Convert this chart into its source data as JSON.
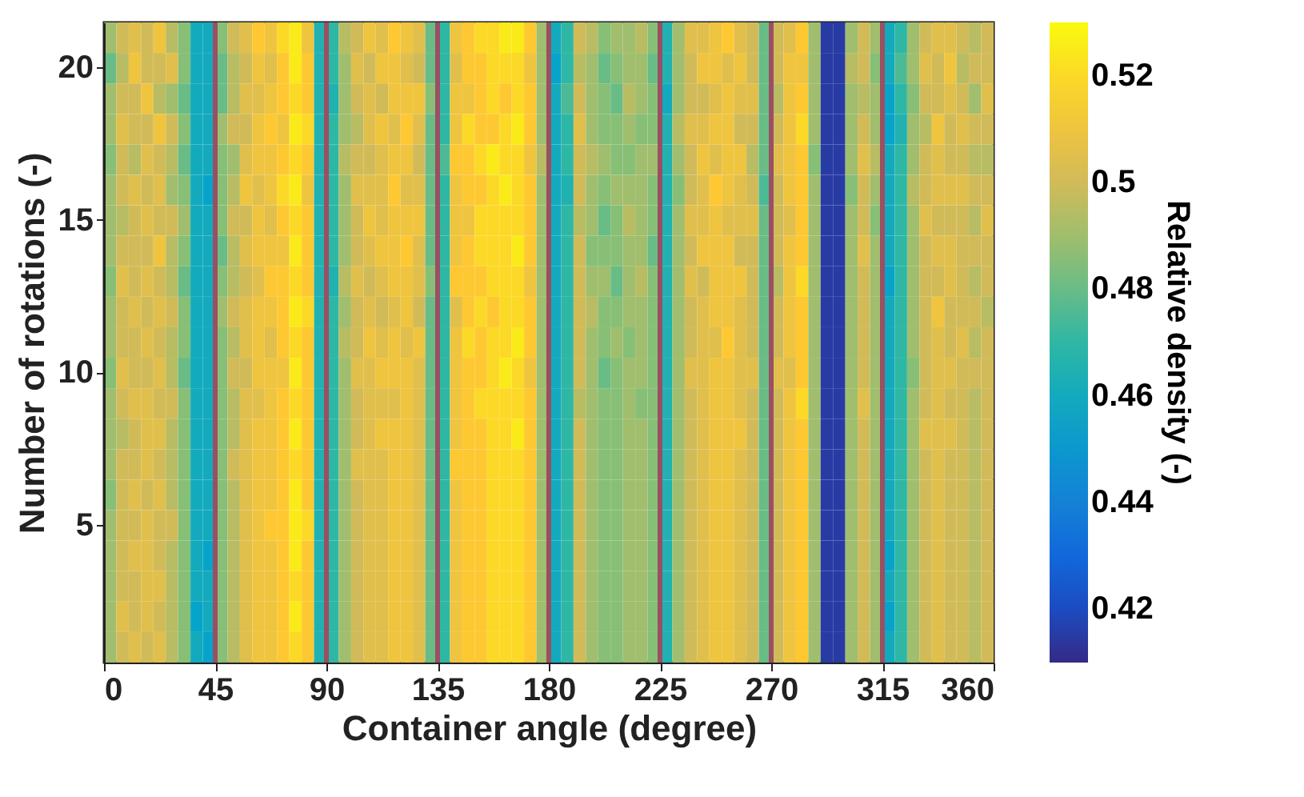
{
  "chart_data": {
    "type": "heatmap",
    "xlabel": "Container angle (degree)",
    "ylabel": "Number of rotations (-)",
    "clabel": "Relative density (-)",
    "x": [
      2.5,
      7.5,
      12.5,
      17.5,
      22.5,
      27.5,
      32.5,
      37.5,
      42.5,
      47.5,
      52.5,
      57.5,
      62.5,
      67.5,
      72.5,
      77.5,
      82.5,
      87.5,
      92.5,
      97.5,
      102.5,
      107.5,
      112.5,
      117.5,
      122.5,
      127.5,
      132.5,
      137.5,
      142.5,
      147.5,
      152.5,
      157.5,
      162.5,
      167.5,
      172.5,
      177.5,
      182.5,
      187.5,
      192.5,
      197.5,
      202.5,
      207.5,
      212.5,
      217.5,
      222.5,
      227.5,
      232.5,
      237.5,
      242.5,
      247.5,
      252.5,
      257.5,
      262.5,
      267.5,
      272.5,
      277.5,
      282.5,
      287.5,
      292.5,
      297.5,
      302.5,
      307.5,
      312.5,
      317.5,
      322.5,
      327.5,
      332.5,
      337.5,
      342.5,
      347.5,
      352.5,
      357.5
    ],
    "y_categories": [
      null,
      "20",
      null,
      null,
      null,
      null,
      "15",
      null,
      null,
      null,
      null,
      "10",
      null,
      null,
      null,
      null,
      "5",
      null,
      null,
      null,
      null
    ],
    "xlim": [
      0,
      360
    ],
    "xticks": [
      0,
      45,
      90,
      135,
      180,
      225,
      270,
      315,
      360
    ],
    "clim": [
      0.41,
      0.53
    ],
    "cticks": [
      0.42,
      0.44,
      0.46,
      0.48,
      0.5,
      0.52
    ],
    "ref_lines": [
      {
        "axis": "x",
        "value": 45,
        "color": "#9a4f63"
      },
      {
        "axis": "x",
        "value": 90,
        "color": "#9a4f63"
      },
      {
        "axis": "x",
        "value": 135,
        "color": "#9a4f63"
      },
      {
        "axis": "x",
        "value": 180,
        "color": "#9a4f63"
      },
      {
        "axis": "x",
        "value": 225,
        "color": "#9a4f63"
      },
      {
        "axis": "x",
        "value": 270,
        "color": "#9a4f63"
      },
      {
        "axis": "x",
        "value": 315,
        "color": "#9a4f63"
      }
    ],
    "cells": [
      [
        0.49,
        0.5,
        0.505,
        0.5,
        0.51,
        0.495,
        0.485,
        0.46,
        0.46,
        0.485,
        0.5,
        0.505,
        0.515,
        0.51,
        0.52,
        0.525,
        0.51,
        0.465,
        0.47,
        0.495,
        0.5,
        0.51,
        0.505,
        0.515,
        0.51,
        0.505,
        0.48,
        0.47,
        0.51,
        0.515,
        0.52,
        0.52,
        0.525,
        0.525,
        0.515,
        0.49,
        0.46,
        0.47,
        0.5,
        0.495,
        0.485,
        0.49,
        0.49,
        0.495,
        0.485,
        0.465,
        0.49,
        0.505,
        0.505,
        0.51,
        0.515,
        0.505,
        0.5,
        0.48,
        0.5,
        0.505,
        0.515,
        0.49,
        0.415,
        0.415,
        0.49,
        0.5,
        0.49,
        0.46,
        0.47,
        0.49,
        0.5,
        0.505,
        0.505,
        0.5,
        0.495,
        0.5
      ],
      [
        0.48,
        0.495,
        0.51,
        0.5,
        0.5,
        0.505,
        0.485,
        0.46,
        0.46,
        0.48,
        0.495,
        0.5,
        0.51,
        0.505,
        0.515,
        0.525,
        0.515,
        0.465,
        0.47,
        0.49,
        0.505,
        0.5,
        0.51,
        0.51,
        0.505,
        0.5,
        0.48,
        0.47,
        0.505,
        0.515,
        0.515,
        0.52,
        0.52,
        0.52,
        0.51,
        0.49,
        0.455,
        0.47,
        0.495,
        0.49,
        0.48,
        0.485,
        0.49,
        0.49,
        0.48,
        0.465,
        0.49,
        0.5,
        0.51,
        0.51,
        0.505,
        0.51,
        0.5,
        0.48,
        0.5,
        0.51,
        0.51,
        0.49,
        0.415,
        0.415,
        0.495,
        0.5,
        0.485,
        0.46,
        0.475,
        0.49,
        0.505,
        0.5,
        0.51,
        0.495,
        0.5,
        0.5
      ],
      [
        0.49,
        0.5,
        0.5,
        0.51,
        0.495,
        0.49,
        0.48,
        0.46,
        0.46,
        0.48,
        0.495,
        0.505,
        0.505,
        0.51,
        0.515,
        0.52,
        0.515,
        0.465,
        0.465,
        0.49,
        0.5,
        0.505,
        0.5,
        0.51,
        0.51,
        0.51,
        0.485,
        0.47,
        0.51,
        0.51,
        0.515,
        0.52,
        0.515,
        0.52,
        0.515,
        0.49,
        0.46,
        0.475,
        0.5,
        0.49,
        0.485,
        0.48,
        0.495,
        0.49,
        0.485,
        0.46,
        0.49,
        0.5,
        0.5,
        0.505,
        0.51,
        0.505,
        0.505,
        0.48,
        0.495,
        0.51,
        0.515,
        0.49,
        0.415,
        0.415,
        0.49,
        0.495,
        0.49,
        0.455,
        0.47,
        0.485,
        0.5,
        0.5,
        0.505,
        0.5,
        0.49,
        0.505
      ],
      [
        0.49,
        0.505,
        0.5,
        0.5,
        0.51,
        0.5,
        0.485,
        0.46,
        0.46,
        0.49,
        0.5,
        0.5,
        0.51,
        0.515,
        0.51,
        0.525,
        0.52,
        0.465,
        0.47,
        0.49,
        0.495,
        0.505,
        0.51,
        0.505,
        0.515,
        0.505,
        0.48,
        0.47,
        0.51,
        0.52,
        0.515,
        0.515,
        0.52,
        0.525,
        0.515,
        0.49,
        0.46,
        0.47,
        0.505,
        0.49,
        0.485,
        0.485,
        0.49,
        0.485,
        0.485,
        0.465,
        0.495,
        0.505,
        0.505,
        0.51,
        0.51,
        0.5,
        0.5,
        0.48,
        0.5,
        0.51,
        0.52,
        0.49,
        0.415,
        0.415,
        0.49,
        0.5,
        0.49,
        0.455,
        0.465,
        0.49,
        0.495,
        0.51,
        0.5,
        0.505,
        0.5,
        0.5
      ],
      [
        0.485,
        0.5,
        0.495,
        0.505,
        0.5,
        0.495,
        0.48,
        0.46,
        0.46,
        0.485,
        0.49,
        0.505,
        0.51,
        0.51,
        0.515,
        0.52,
        0.515,
        0.465,
        0.47,
        0.495,
        0.5,
        0.5,
        0.505,
        0.51,
        0.51,
        0.5,
        0.48,
        0.475,
        0.515,
        0.515,
        0.52,
        0.525,
        0.52,
        0.52,
        0.51,
        0.495,
        0.46,
        0.47,
        0.5,
        0.495,
        0.49,
        0.485,
        0.485,
        0.49,
        0.49,
        0.465,
        0.49,
        0.5,
        0.51,
        0.505,
        0.51,
        0.51,
        0.495,
        0.48,
        0.505,
        0.51,
        0.515,
        0.485,
        0.415,
        0.415,
        0.49,
        0.505,
        0.495,
        0.46,
        0.47,
        0.49,
        0.5,
        0.505,
        0.5,
        0.5,
        0.495,
        0.495
      ],
      [
        0.49,
        0.5,
        0.505,
        0.5,
        0.505,
        0.49,
        0.485,
        0.46,
        0.455,
        0.485,
        0.495,
        0.51,
        0.505,
        0.51,
        0.52,
        0.525,
        0.51,
        0.465,
        0.47,
        0.49,
        0.505,
        0.505,
        0.505,
        0.515,
        0.505,
        0.505,
        0.48,
        0.47,
        0.51,
        0.515,
        0.515,
        0.52,
        0.525,
        0.52,
        0.515,
        0.49,
        0.46,
        0.465,
        0.5,
        0.49,
        0.485,
        0.49,
        0.49,
        0.49,
        0.485,
        0.465,
        0.485,
        0.5,
        0.505,
        0.515,
        0.51,
        0.505,
        0.5,
        0.475,
        0.5,
        0.51,
        0.515,
        0.49,
        0.415,
        0.415,
        0.485,
        0.5,
        0.49,
        0.46,
        0.47,
        0.495,
        0.5,
        0.505,
        0.505,
        0.505,
        0.5,
        0.5
      ],
      [
        0.49,
        0.495,
        0.5,
        0.505,
        0.5,
        0.5,
        0.49,
        0.46,
        0.46,
        0.485,
        0.5,
        0.5,
        0.51,
        0.505,
        0.515,
        0.52,
        0.515,
        0.465,
        0.47,
        0.49,
        0.5,
        0.51,
        0.505,
        0.51,
        0.51,
        0.51,
        0.48,
        0.47,
        0.51,
        0.51,
        0.52,
        0.52,
        0.52,
        0.52,
        0.515,
        0.49,
        0.46,
        0.47,
        0.495,
        0.49,
        0.48,
        0.485,
        0.495,
        0.49,
        0.485,
        0.465,
        0.49,
        0.505,
        0.505,
        0.51,
        0.505,
        0.505,
        0.505,
        0.48,
        0.5,
        0.505,
        0.515,
        0.49,
        0.415,
        0.415,
        0.49,
        0.5,
        0.485,
        0.46,
        0.47,
        0.49,
        0.505,
        0.5,
        0.5,
        0.5,
        0.495,
        0.505
      ],
      [
        0.49,
        0.5,
        0.5,
        0.5,
        0.51,
        0.495,
        0.485,
        0.46,
        0.46,
        0.48,
        0.495,
        0.505,
        0.51,
        0.51,
        0.51,
        0.525,
        0.515,
        0.465,
        0.47,
        0.49,
        0.5,
        0.505,
        0.51,
        0.51,
        0.515,
        0.505,
        0.48,
        0.47,
        0.51,
        0.515,
        0.52,
        0.52,
        0.52,
        0.525,
        0.515,
        0.49,
        0.46,
        0.47,
        0.5,
        0.485,
        0.485,
        0.485,
        0.49,
        0.49,
        0.48,
        0.465,
        0.49,
        0.5,
        0.51,
        0.51,
        0.51,
        0.5,
        0.5,
        0.48,
        0.5,
        0.51,
        0.515,
        0.49,
        0.415,
        0.415,
        0.49,
        0.505,
        0.49,
        0.46,
        0.47,
        0.49,
        0.5,
        0.505,
        0.505,
        0.5,
        0.5,
        0.5
      ],
      [
        0.485,
        0.505,
        0.5,
        0.505,
        0.5,
        0.495,
        0.48,
        0.46,
        0.46,
        0.485,
        0.495,
        0.5,
        0.505,
        0.515,
        0.515,
        0.52,
        0.515,
        0.465,
        0.465,
        0.495,
        0.505,
        0.5,
        0.505,
        0.51,
        0.51,
        0.505,
        0.485,
        0.47,
        0.515,
        0.515,
        0.515,
        0.52,
        0.52,
        0.52,
        0.51,
        0.49,
        0.46,
        0.47,
        0.5,
        0.49,
        0.49,
        0.48,
        0.49,
        0.495,
        0.485,
        0.465,
        0.49,
        0.505,
        0.5,
        0.51,
        0.51,
        0.51,
        0.5,
        0.48,
        0.495,
        0.51,
        0.52,
        0.49,
        0.415,
        0.415,
        0.49,
        0.5,
        0.49,
        0.455,
        0.47,
        0.49,
        0.5,
        0.5,
        0.505,
        0.5,
        0.495,
        0.5
      ],
      [
        0.49,
        0.5,
        0.505,
        0.5,
        0.505,
        0.5,
        0.485,
        0.46,
        0.46,
        0.49,
        0.5,
        0.505,
        0.51,
        0.51,
        0.515,
        0.525,
        0.52,
        0.465,
        0.47,
        0.49,
        0.5,
        0.505,
        0.5,
        0.505,
        0.51,
        0.5,
        0.48,
        0.47,
        0.505,
        0.515,
        0.52,
        0.515,
        0.52,
        0.52,
        0.515,
        0.49,
        0.46,
        0.47,
        0.5,
        0.495,
        0.485,
        0.485,
        0.49,
        0.49,
        0.485,
        0.465,
        0.49,
        0.5,
        0.505,
        0.51,
        0.51,
        0.505,
        0.5,
        0.48,
        0.5,
        0.51,
        0.515,
        0.49,
        0.415,
        0.415,
        0.49,
        0.5,
        0.49,
        0.46,
        0.47,
        0.49,
        0.5,
        0.51,
        0.5,
        0.5,
        0.5,
        0.495
      ],
      [
        0.49,
        0.5,
        0.5,
        0.505,
        0.5,
        0.495,
        0.485,
        0.46,
        0.46,
        0.485,
        0.495,
        0.505,
        0.51,
        0.505,
        0.515,
        0.52,
        0.515,
        0.465,
        0.47,
        0.495,
        0.5,
        0.51,
        0.505,
        0.51,
        0.505,
        0.51,
        0.48,
        0.47,
        0.51,
        0.52,
        0.515,
        0.52,
        0.52,
        0.525,
        0.515,
        0.49,
        0.46,
        0.47,
        0.5,
        0.49,
        0.485,
        0.49,
        0.485,
        0.49,
        0.485,
        0.465,
        0.49,
        0.5,
        0.505,
        0.505,
        0.515,
        0.505,
        0.5,
        0.48,
        0.5,
        0.51,
        0.515,
        0.49,
        0.415,
        0.415,
        0.49,
        0.5,
        0.49,
        0.46,
        0.47,
        0.49,
        0.5,
        0.505,
        0.5,
        0.505,
        0.495,
        0.5
      ],
      [
        0.485,
        0.505,
        0.5,
        0.5,
        0.505,
        0.495,
        0.48,
        0.46,
        0.46,
        0.485,
        0.5,
        0.5,
        0.51,
        0.51,
        0.51,
        0.525,
        0.515,
        0.465,
        0.47,
        0.49,
        0.505,
        0.505,
        0.51,
        0.51,
        0.51,
        0.505,
        0.48,
        0.47,
        0.51,
        0.515,
        0.515,
        0.52,
        0.525,
        0.52,
        0.51,
        0.49,
        0.46,
        0.47,
        0.5,
        0.49,
        0.48,
        0.485,
        0.49,
        0.49,
        0.485,
        0.465,
        0.49,
        0.505,
        0.505,
        0.51,
        0.51,
        0.505,
        0.505,
        0.48,
        0.505,
        0.505,
        0.515,
        0.49,
        0.415,
        0.415,
        0.49,
        0.5,
        0.49,
        0.46,
        0.47,
        0.485,
        0.5,
        0.505,
        0.505,
        0.5,
        0.5,
        0.5
      ],
      [
        0.49,
        0.5,
        0.505,
        0.505,
        0.5,
        0.5,
        0.485,
        0.46,
        0.46,
        0.485,
        0.495,
        0.505,
        0.505,
        0.51,
        0.515,
        0.52,
        0.515,
        0.465,
        0.47,
        0.49,
        0.5,
        0.505,
        0.505,
        0.505,
        0.51,
        0.505,
        0.48,
        0.47,
        0.51,
        0.515,
        0.52,
        0.52,
        0.52,
        0.52,
        0.515,
        0.49,
        0.46,
        0.47,
        0.495,
        0.49,
        0.485,
        0.485,
        0.49,
        0.485,
        0.485,
        0.465,
        0.49,
        0.5,
        0.505,
        0.51,
        0.51,
        0.505,
        0.5,
        0.48,
        0.5,
        0.51,
        0.52,
        0.49,
        0.415,
        0.415,
        0.49,
        0.505,
        0.49,
        0.46,
        0.47,
        0.49,
        0.5,
        0.505,
        0.5,
        0.5,
        0.495,
        0.5
      ],
      [
        0.49,
        0.495,
        0.5,
        0.505,
        0.505,
        0.495,
        0.485,
        0.46,
        0.46,
        0.485,
        0.495,
        0.505,
        0.51,
        0.51,
        0.515,
        0.525,
        0.515,
        0.465,
        0.47,
        0.49,
        0.5,
        0.505,
        0.51,
        0.51,
        0.51,
        0.505,
        0.48,
        0.47,
        0.51,
        0.515,
        0.515,
        0.52,
        0.52,
        0.525,
        0.515,
        0.49,
        0.46,
        0.47,
        0.5,
        0.49,
        0.485,
        0.485,
        0.49,
        0.49,
        0.485,
        0.465,
        0.49,
        0.5,
        0.505,
        0.51,
        0.51,
        0.51,
        0.5,
        0.48,
        0.5,
        0.51,
        0.515,
        0.49,
        0.415,
        0.415,
        0.49,
        0.5,
        0.49,
        0.46,
        0.47,
        0.49,
        0.505,
        0.505,
        0.505,
        0.5,
        0.495,
        0.5
      ],
      [
        0.49,
        0.5,
        0.5,
        0.505,
        0.5,
        0.495,
        0.485,
        0.46,
        0.46,
        0.485,
        0.5,
        0.505,
        0.51,
        0.51,
        0.515,
        0.52,
        0.515,
        0.465,
        0.47,
        0.49,
        0.505,
        0.505,
        0.505,
        0.51,
        0.51,
        0.505,
        0.48,
        0.47,
        0.515,
        0.515,
        0.515,
        0.52,
        0.52,
        0.52,
        0.515,
        0.49,
        0.46,
        0.47,
        0.5,
        0.49,
        0.485,
        0.485,
        0.49,
        0.49,
        0.485,
        0.465,
        0.49,
        0.5,
        0.505,
        0.51,
        0.51,
        0.505,
        0.5,
        0.48,
        0.5,
        0.51,
        0.515,
        0.49,
        0.415,
        0.415,
        0.49,
        0.5,
        0.49,
        0.46,
        0.47,
        0.49,
        0.5,
        0.505,
        0.5,
        0.5,
        0.495,
        0.5
      ],
      [
        0.485,
        0.5,
        0.505,
        0.5,
        0.505,
        0.495,
        0.485,
        0.46,
        0.46,
        0.485,
        0.495,
        0.505,
        0.51,
        0.51,
        0.515,
        0.525,
        0.515,
        0.465,
        0.47,
        0.49,
        0.5,
        0.505,
        0.505,
        0.51,
        0.51,
        0.505,
        0.48,
        0.47,
        0.51,
        0.515,
        0.515,
        0.52,
        0.52,
        0.52,
        0.515,
        0.49,
        0.46,
        0.47,
        0.5,
        0.49,
        0.485,
        0.485,
        0.49,
        0.49,
        0.485,
        0.465,
        0.49,
        0.5,
        0.505,
        0.51,
        0.51,
        0.505,
        0.5,
        0.48,
        0.5,
        0.51,
        0.515,
        0.49,
        0.415,
        0.415,
        0.49,
        0.5,
        0.49,
        0.46,
        0.47,
        0.49,
        0.5,
        0.505,
        0.5,
        0.5,
        0.495,
        0.5
      ],
      [
        0.49,
        0.5,
        0.5,
        0.505,
        0.5,
        0.5,
        0.485,
        0.46,
        0.46,
        0.485,
        0.495,
        0.505,
        0.51,
        0.515,
        0.515,
        0.525,
        0.52,
        0.465,
        0.47,
        0.49,
        0.5,
        0.505,
        0.505,
        0.51,
        0.51,
        0.505,
        0.48,
        0.47,
        0.51,
        0.515,
        0.515,
        0.52,
        0.52,
        0.52,
        0.515,
        0.49,
        0.46,
        0.47,
        0.5,
        0.49,
        0.485,
        0.485,
        0.49,
        0.49,
        0.485,
        0.465,
        0.49,
        0.5,
        0.505,
        0.51,
        0.51,
        0.505,
        0.5,
        0.48,
        0.5,
        0.51,
        0.515,
        0.49,
        0.415,
        0.415,
        0.49,
        0.5,
        0.49,
        0.46,
        0.47,
        0.49,
        0.5,
        0.505,
        0.5,
        0.5,
        0.495,
        0.5
      ],
      [
        0.49,
        0.5,
        0.505,
        0.505,
        0.5,
        0.495,
        0.485,
        0.46,
        0.455,
        0.485,
        0.495,
        0.505,
        0.51,
        0.51,
        0.515,
        0.525,
        0.515,
        0.465,
        0.47,
        0.49,
        0.5,
        0.505,
        0.505,
        0.51,
        0.51,
        0.505,
        0.48,
        0.47,
        0.51,
        0.515,
        0.515,
        0.52,
        0.52,
        0.52,
        0.515,
        0.49,
        0.46,
        0.47,
        0.5,
        0.49,
        0.485,
        0.485,
        0.49,
        0.49,
        0.485,
        0.465,
        0.49,
        0.5,
        0.505,
        0.51,
        0.51,
        0.505,
        0.5,
        0.48,
        0.5,
        0.51,
        0.515,
        0.49,
        0.415,
        0.415,
        0.49,
        0.5,
        0.49,
        0.455,
        0.47,
        0.49,
        0.5,
        0.505,
        0.5,
        0.5,
        0.495,
        0.5
      ],
      [
        0.49,
        0.5,
        0.5,
        0.505,
        0.505,
        0.495,
        0.485,
        0.46,
        0.46,
        0.485,
        0.495,
        0.505,
        0.51,
        0.51,
        0.515,
        0.52,
        0.515,
        0.465,
        0.47,
        0.49,
        0.5,
        0.505,
        0.505,
        0.51,
        0.51,
        0.505,
        0.48,
        0.47,
        0.51,
        0.515,
        0.515,
        0.52,
        0.52,
        0.52,
        0.515,
        0.49,
        0.46,
        0.47,
        0.5,
        0.49,
        0.485,
        0.485,
        0.49,
        0.49,
        0.485,
        0.465,
        0.49,
        0.5,
        0.505,
        0.51,
        0.51,
        0.505,
        0.5,
        0.48,
        0.5,
        0.51,
        0.515,
        0.49,
        0.415,
        0.415,
        0.49,
        0.5,
        0.49,
        0.46,
        0.47,
        0.49,
        0.5,
        0.505,
        0.5,
        0.5,
        0.495,
        0.5
      ],
      [
        0.49,
        0.505,
        0.5,
        0.505,
        0.5,
        0.495,
        0.485,
        0.455,
        0.46,
        0.485,
        0.495,
        0.505,
        0.51,
        0.51,
        0.515,
        0.525,
        0.515,
        0.465,
        0.47,
        0.49,
        0.5,
        0.505,
        0.505,
        0.51,
        0.51,
        0.505,
        0.48,
        0.47,
        0.51,
        0.515,
        0.515,
        0.52,
        0.52,
        0.52,
        0.515,
        0.49,
        0.46,
        0.47,
        0.5,
        0.49,
        0.485,
        0.485,
        0.49,
        0.49,
        0.485,
        0.465,
        0.49,
        0.5,
        0.505,
        0.51,
        0.51,
        0.505,
        0.5,
        0.48,
        0.5,
        0.51,
        0.515,
        0.49,
        0.415,
        0.415,
        0.49,
        0.5,
        0.49,
        0.455,
        0.47,
        0.49,
        0.5,
        0.505,
        0.5,
        0.5,
        0.495,
        0.5
      ],
      [
        0.49,
        0.5,
        0.505,
        0.5,
        0.505,
        0.495,
        0.485,
        0.46,
        0.455,
        0.485,
        0.495,
        0.505,
        0.51,
        0.51,
        0.515,
        0.52,
        0.515,
        0.465,
        0.47,
        0.49,
        0.5,
        0.505,
        0.505,
        0.51,
        0.51,
        0.505,
        0.48,
        0.47,
        0.51,
        0.515,
        0.515,
        0.52,
        0.52,
        0.52,
        0.515,
        0.49,
        0.46,
        0.47,
        0.5,
        0.49,
        0.485,
        0.485,
        0.49,
        0.49,
        0.485,
        0.465,
        0.49,
        0.5,
        0.505,
        0.51,
        0.51,
        0.505,
        0.5,
        0.48,
        0.5,
        0.51,
        0.515,
        0.49,
        0.415,
        0.415,
        0.49,
        0.5,
        0.49,
        0.46,
        0.47,
        0.49,
        0.5,
        0.505,
        0.5,
        0.5,
        0.495,
        0.5
      ]
    ]
  }
}
